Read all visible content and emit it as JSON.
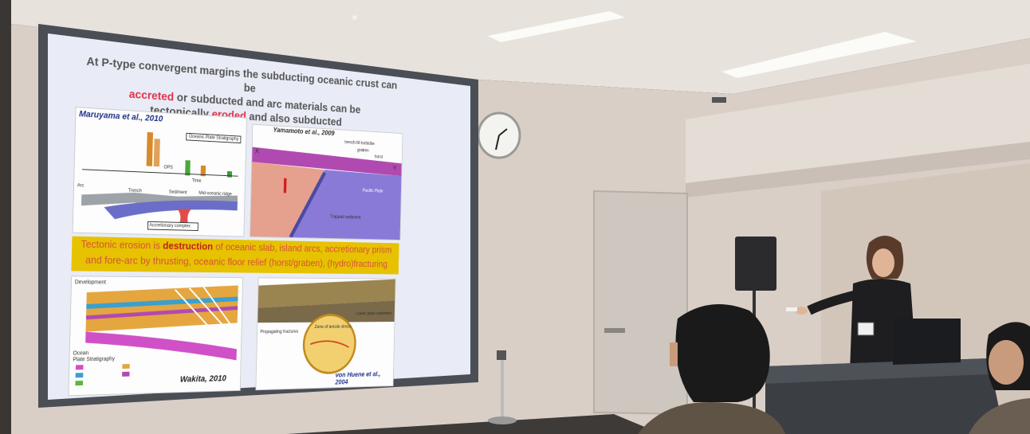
{
  "slide": {
    "title_lines": [
      {
        "before": "At P-type convergent margins the subducting oceanic crust can be",
        "hl": "",
        "after": ""
      },
      {
        "before": "",
        "hl": "accreted",
        "after": " or subducted and arc materials can be"
      },
      {
        "before": "tectonically ",
        "hl": "eroded",
        "after": " and also subducted"
      }
    ],
    "banner": {
      "line1_pre": "Tectonic erosion is ",
      "line1_bold": "destruction",
      "line1_post": " of oceanic slab, island arcs, accretionary prism",
      "line2": "and fore-arc by thrusting, oceanic floor relief (horst/graben), (hydro)fracturing"
    },
    "figures": {
      "top_left_citation": "Maruyama et al., 2010",
      "top_left_box": "Oceanic Plate Stratigraphy",
      "top_left_labels": [
        "Arc",
        "Trench",
        "Sediment",
        "Mid-oceanic ridge",
        "Accretionary complex",
        "Time",
        "OPS"
      ],
      "top_right_citation": "Yamamoto et al., 2009",
      "top_right_labels": [
        "X",
        "Y",
        "trench-fill turbidite",
        "graben",
        "horst",
        "Pacific Plate",
        "Trapped sediment"
      ],
      "bottom_left_labels": [
        "Development",
        "Ocean",
        "Plate Stratigraphy"
      ],
      "bottom_left_citation": "Wakita, 2010",
      "bottom_right_labels": [
        "Propagating fractures",
        "Zone of tensile stress",
        "Lower plate sediment"
      ],
      "bottom_right_citation": "von Huene et al., 2004"
    }
  },
  "colors": {
    "wall": "#d9cfc7",
    "screen_frame": "#4a4e55",
    "slide_bg": "#e9ecf6",
    "banner": "#e6c200",
    "highlight": "#e0324a",
    "door": "#cfc9c2"
  },
  "objects": [
    "projection-screen",
    "wall-clock",
    "door",
    "speaker-loudspeaker",
    "podium",
    "monitor",
    "presenter",
    "audience-member-left",
    "audience-member-right",
    "microphone-stand",
    "ceiling-lights"
  ]
}
